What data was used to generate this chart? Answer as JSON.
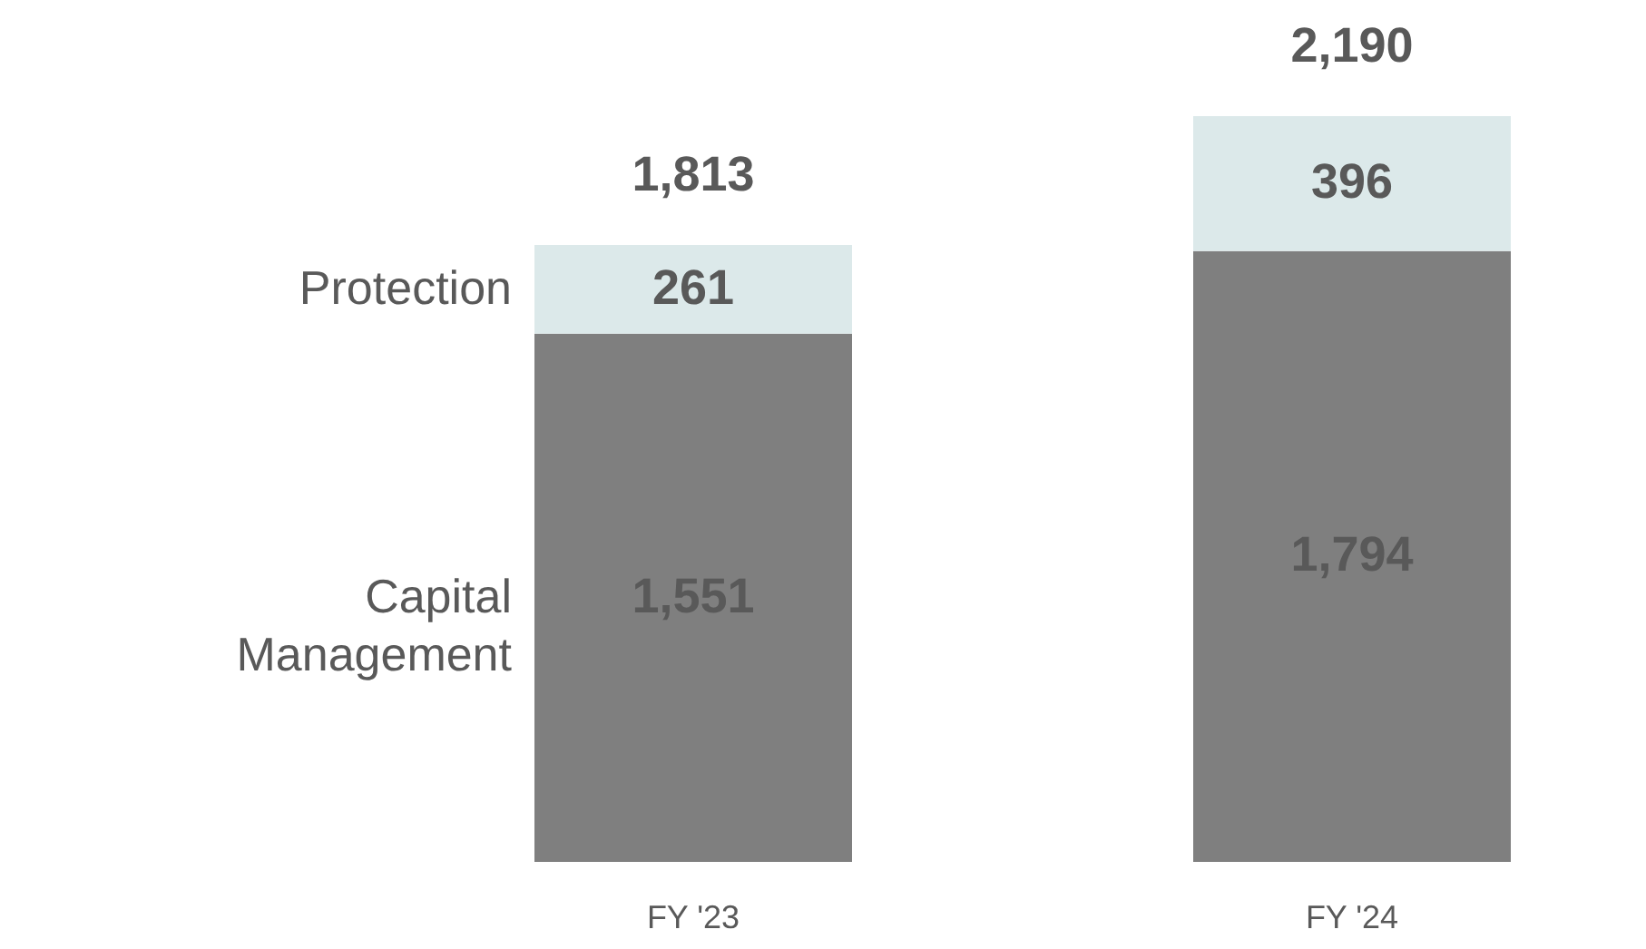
{
  "chart_data": {
    "type": "bar",
    "stacked": true,
    "categories": [
      "FY '23",
      "FY '24"
    ],
    "series": [
      {
        "name": "Capital Management",
        "color": "#7f7f7f",
        "values": [
          1551,
          1794
        ],
        "value_labels": [
          "1,551",
          "1,794"
        ]
      },
      {
        "name": "Protection",
        "color": "#dce9ea",
        "values": [
          261,
          396
        ],
        "value_labels": [
          "261",
          "396"
        ]
      }
    ],
    "totals": [
      "1,813",
      "2,190"
    ],
    "tick_labels": "x",
    "legend": "left"
  }
}
